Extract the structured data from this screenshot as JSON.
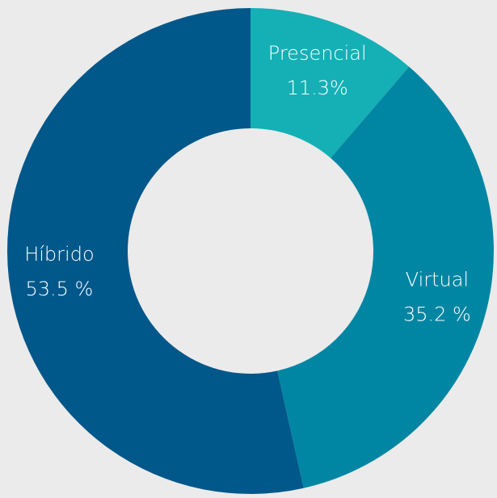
{
  "chart_data": {
    "type": "donut",
    "categories": [
      "Presencial",
      "Virtual",
      "Híbrido"
    ],
    "values": [
      11.3,
      35.2,
      53.5
    ],
    "value_labels": [
      "11.3%",
      "35.2 %",
      "53.5 %"
    ],
    "colors": [
      "#14b0b5",
      "#0086a3",
      "#00578a"
    ]
  }
}
